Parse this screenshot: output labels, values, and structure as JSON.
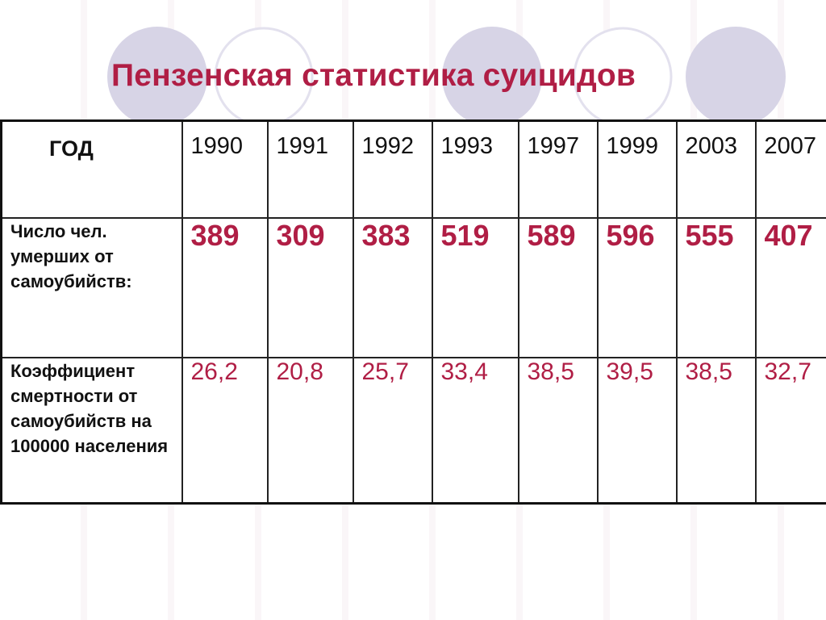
{
  "slide": {
    "title": "Пензенская статистика суицидов"
  },
  "colors": {
    "accent": "#b01e45",
    "circle_fill": "#d7d4e6",
    "circle_stroke": "#e3e1ee",
    "text": "#111111",
    "border": "#222222"
  },
  "table": {
    "year_header": "ГОД",
    "years": [
      "1990",
      "1991",
      "1992",
      "1993",
      "1997",
      "1999",
      "2003",
      "2007"
    ],
    "rows": [
      {
        "label": "Число чел. умерших от самоубийств:",
        "values": [
          "389",
          "309",
          "383",
          "519",
          "589",
          "596",
          "555",
          "407"
        ]
      },
      {
        "label": "Коэффициент смертности от самоубийств на 100000 населения",
        "values": [
          "26,2",
          "20,8",
          "25,7",
          "33,4",
          "38,5",
          "39,5",
          "38,5",
          "32,7"
        ]
      }
    ]
  }
}
